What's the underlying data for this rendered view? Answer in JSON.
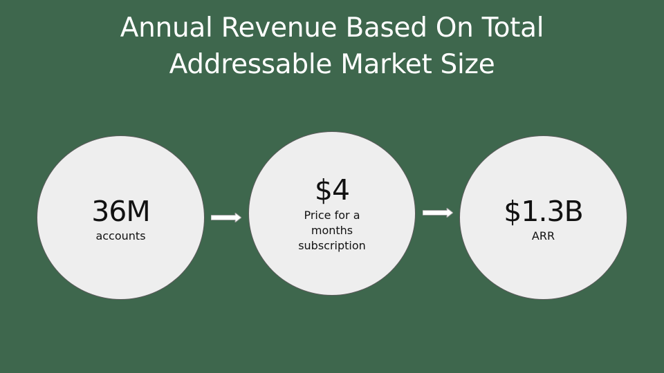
{
  "slide": {
    "title_line1": "Annual Revenue Based On Total",
    "title_line2": "Addressable Market Size",
    "background_color": "#3e674d",
    "circle_color": "#eeeeee"
  },
  "steps": [
    {
      "metric": "36M",
      "caption": "accounts"
    },
    {
      "metric": "$4",
      "caption": "Price for a months subscription"
    },
    {
      "metric": "$1.3B",
      "caption": "ARR"
    }
  ],
  "connectors": [
    {
      "icon": "right-arrow-icon"
    },
    {
      "icon": "right-arrow-icon"
    }
  ]
}
